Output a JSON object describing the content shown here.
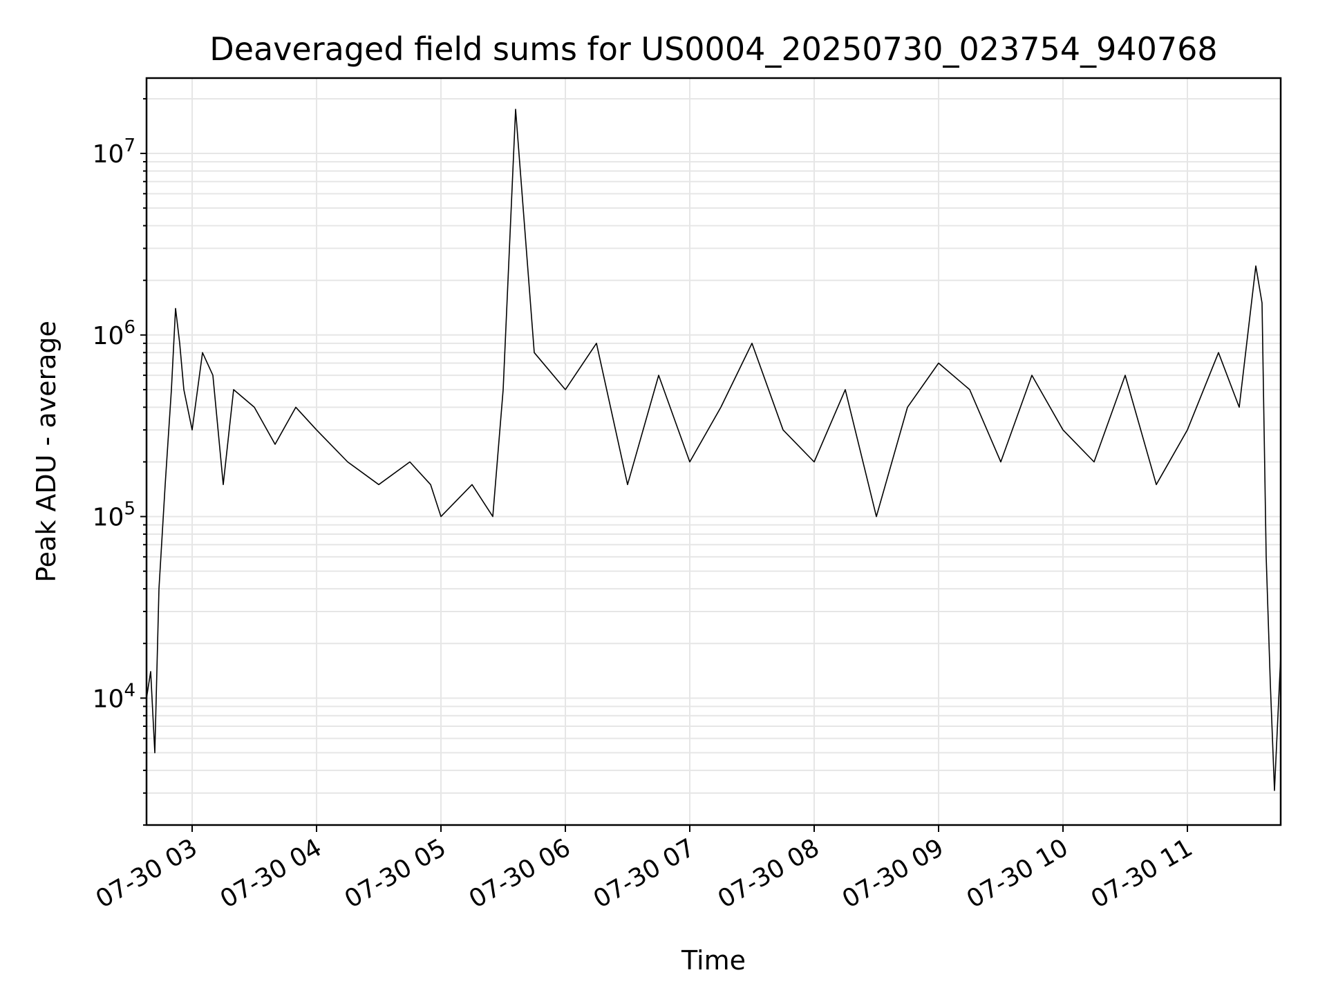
{
  "chart_data": {
    "type": "line",
    "title": "Deaveraged field sums for US0004_20250730_023754_940768",
    "xlabel": "Time",
    "ylabel": "Peak ADU - average",
    "yscale": "log",
    "ylim": [
      2000,
      26000000
    ],
    "xlim": [
      "2025-07-30 02:38",
      "2025-07-30 11:45"
    ],
    "grid": true,
    "line_color": "#000000",
    "grid_color": "#e6e6e6",
    "x_ticks": [
      "07-30 03",
      "07-30 04",
      "07-30 05",
      "07-30 06",
      "07-30 07",
      "07-30 08",
      "07-30 09",
      "07-30 10",
      "07-30 11"
    ],
    "y_ticks": [
      {
        "value": 10000,
        "base": "10",
        "exp": "4"
      },
      {
        "value": 100000,
        "base": "10",
        "exp": "5"
      },
      {
        "value": 1000000,
        "base": "10",
        "exp": "6"
      },
      {
        "value": 10000000,
        "base": "10",
        "exp": "7"
      }
    ],
    "series": [
      {
        "x": [
          "2025-07-30 02:38",
          "2025-07-30 02:40",
          "2025-07-30 02:42",
          "2025-07-30 02:44",
          "2025-07-30 02:47",
          "2025-07-30 02:50",
          "2025-07-30 02:52",
          "2025-07-30 02:54",
          "2025-07-30 02:56",
          "2025-07-30 03:00",
          "2025-07-30 03:05",
          "2025-07-30 03:10",
          "2025-07-30 03:15",
          "2025-07-30 03:20",
          "2025-07-30 03:30",
          "2025-07-30 03:40",
          "2025-07-30 03:50",
          "2025-07-30 04:00",
          "2025-07-30 04:15",
          "2025-07-30 04:30",
          "2025-07-30 04:45",
          "2025-07-30 04:55",
          "2025-07-30 05:00",
          "2025-07-30 05:15",
          "2025-07-30 05:25",
          "2025-07-30 05:30",
          "2025-07-30 05:36",
          "2025-07-30 05:45",
          "2025-07-30 06:00",
          "2025-07-30 06:15",
          "2025-07-30 06:30",
          "2025-07-30 06:45",
          "2025-07-30 07:00",
          "2025-07-30 07:15",
          "2025-07-30 07:30",
          "2025-07-30 07:45",
          "2025-07-30 08:00",
          "2025-07-30 08:15",
          "2025-07-30 08:30",
          "2025-07-30 08:45",
          "2025-07-30 09:00",
          "2025-07-30 09:15",
          "2025-07-30 09:30",
          "2025-07-30 09:45",
          "2025-07-30 10:00",
          "2025-07-30 10:15",
          "2025-07-30 10:30",
          "2025-07-30 10:45",
          "2025-07-30 11:00",
          "2025-07-30 11:15",
          "2025-07-30 11:25",
          "2025-07-30 11:33",
          "2025-07-30 11:36",
          "2025-07-30 11:38",
          "2025-07-30 11:40",
          "2025-07-30 11:42",
          "2025-07-30 11:45"
        ],
        "y": [
          10000,
          14000,
          5000,
          40000,
          150000,
          500000,
          1400000,
          900000,
          500000,
          300000,
          800000,
          600000,
          150000,
          500000,
          400000,
          250000,
          400000,
          300000,
          200000,
          150000,
          200000,
          150000,
          100000,
          150000,
          100000,
          500000,
          17500000,
          800000,
          500000,
          900000,
          150000,
          600000,
          200000,
          400000,
          900000,
          300000,
          200000,
          500000,
          100000,
          400000,
          700000,
          500000,
          200000,
          600000,
          300000,
          200000,
          600000,
          150000,
          300000,
          800000,
          400000,
          2400000,
          1500000,
          60000,
          12000,
          3100,
          17000
        ]
      }
    ]
  }
}
